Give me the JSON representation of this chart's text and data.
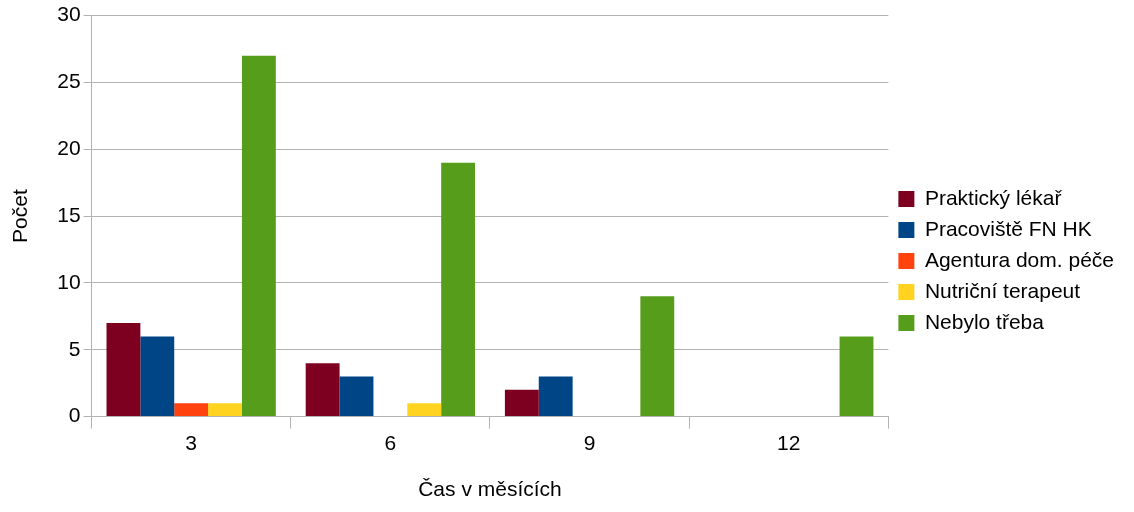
{
  "chart_data": {
    "type": "bar",
    "xlabel": "Čas v měsících",
    "ylabel": "Počet",
    "categories": [
      "3",
      "6",
      "9",
      "12"
    ],
    "series": [
      {
        "name": "Praktický lékař",
        "color": "#7e0021",
        "values": [
          7,
          4,
          2,
          0
        ]
      },
      {
        "name": "Pracoviště FN HK",
        "color": "#004586",
        "values": [
          6,
          3,
          3,
          0
        ]
      },
      {
        "name": "Agentura dom. péče",
        "color": "#ff420e",
        "values": [
          1,
          0,
          0,
          0
        ]
      },
      {
        "name": "Nutriční terapeut",
        "color": "#ffd320",
        "values": [
          1,
          1,
          0,
          0
        ]
      },
      {
        "name": "Nebylo třeba",
        "color": "#579d1c",
        "values": [
          27,
          19,
          9,
          6
        ]
      }
    ],
    "ylim": [
      0,
      30
    ],
    "yticks": [
      0,
      5,
      10,
      15,
      20,
      25,
      30
    ],
    "grid": "y",
    "legend": "right"
  }
}
